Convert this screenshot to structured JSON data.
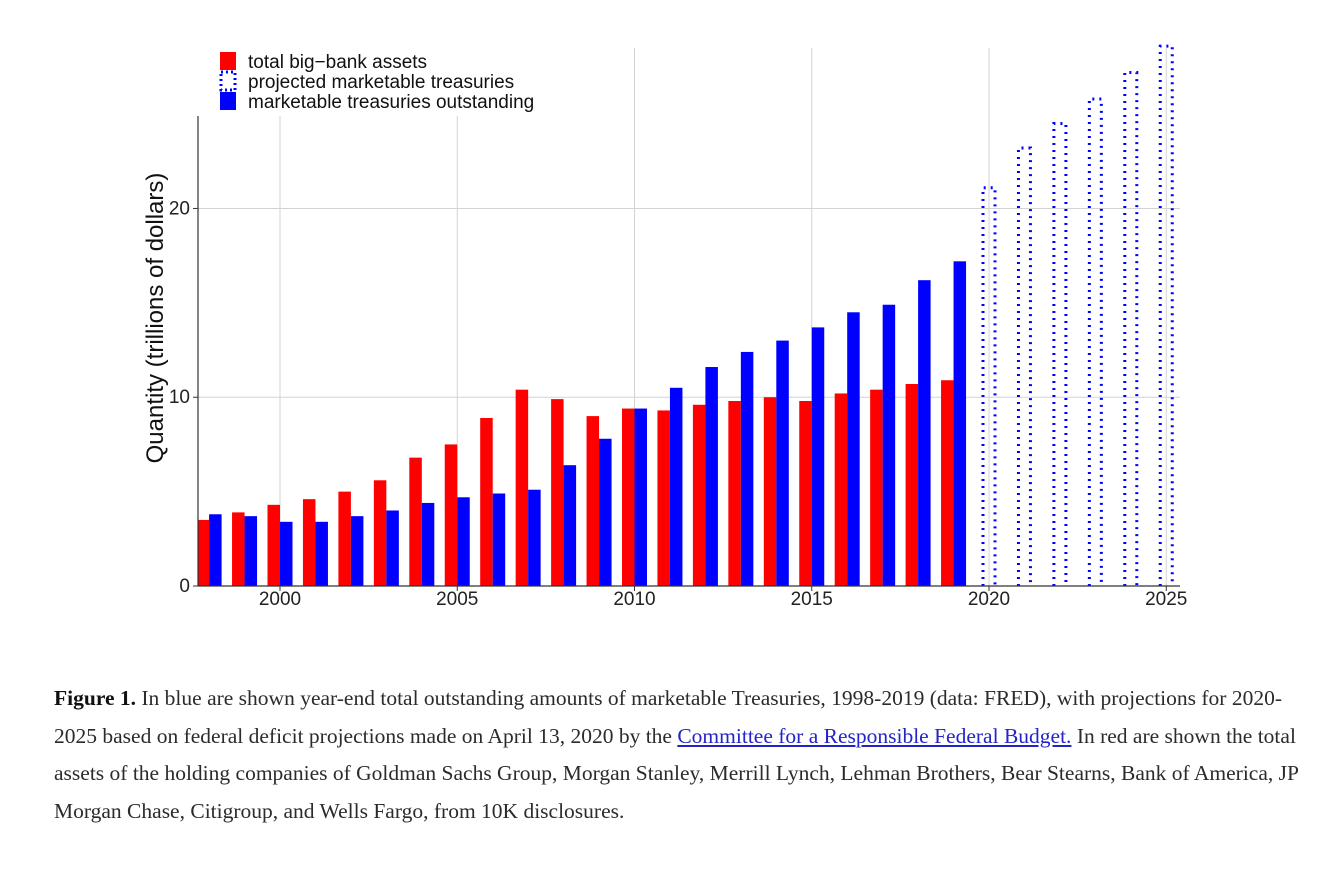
{
  "chart_data": {
    "type": "bar",
    "title": "",
    "xlabel": "",
    "ylabel": "Quantity (trillions of dollars)",
    "xlim": [
      1998,
      2025
    ],
    "ylim": [
      0,
      28
    ],
    "x_ticks": [
      "2000",
      "2005",
      "2010",
      "2015",
      "2020",
      "2025"
    ],
    "y_ticks": [
      "0",
      "10",
      "20"
    ],
    "grid": true,
    "legend_position": "top-left",
    "series": [
      {
        "name": "total big−bank assets",
        "style": "solid",
        "color": "#ff0000",
        "x": [
          1998,
          1999,
          2000,
          2001,
          2002,
          2003,
          2004,
          2005,
          2006,
          2007,
          2008,
          2009,
          2010,
          2011,
          2012,
          2013,
          2014,
          2015,
          2016,
          2017,
          2018,
          2019
        ],
        "values": [
          3.5,
          3.9,
          4.3,
          4.6,
          5.0,
          5.6,
          6.8,
          7.5,
          8.9,
          10.4,
          9.9,
          9.0,
          9.4,
          9.3,
          9.6,
          9.8,
          10.0,
          9.8,
          10.2,
          10.4,
          10.7,
          10.9
        ]
      },
      {
        "name": "projected marketable treasuries",
        "style": "dotted",
        "color": "#0000ff",
        "x": [
          2020,
          2021,
          2022,
          2023,
          2024,
          2025
        ],
        "values": [
          21.1,
          23.2,
          24.5,
          25.8,
          27.2,
          28.6
        ]
      },
      {
        "name": "marketable treasuries outstanding",
        "style": "solid",
        "color": "#0000ff",
        "x": [
          1998,
          1999,
          2000,
          2001,
          2002,
          2003,
          2004,
          2005,
          2006,
          2007,
          2008,
          2009,
          2010,
          2011,
          2012,
          2013,
          2014,
          2015,
          2016,
          2017,
          2018,
          2019
        ],
        "values": [
          3.8,
          3.7,
          3.4,
          3.4,
          3.7,
          4.0,
          4.4,
          4.7,
          4.9,
          5.1,
          6.4,
          7.8,
          9.4,
          10.5,
          11.6,
          12.4,
          13.0,
          13.7,
          14.5,
          14.9,
          16.2,
          17.2
        ]
      }
    ]
  },
  "caption": {
    "label": "Figure 1.",
    "text_1": " In blue are shown year-end total outstanding amounts of marketable Treasuries, 1998-2019 (data: FRED), with projections for 2020-2025 based on federal deficit projections made on April 13, 2020 by the ",
    "link_text": "Committee for a Responsible Federal Budget.",
    "text_2": " In red are shown the total assets of the holding companies of Goldman Sachs Group, Morgan Stanley, Merrill Lynch, Lehman Brothers, Bear Stearns, Bank of America, JP Morgan Chase, Citigroup, and Wells Fargo, from 10K disclosures."
  }
}
